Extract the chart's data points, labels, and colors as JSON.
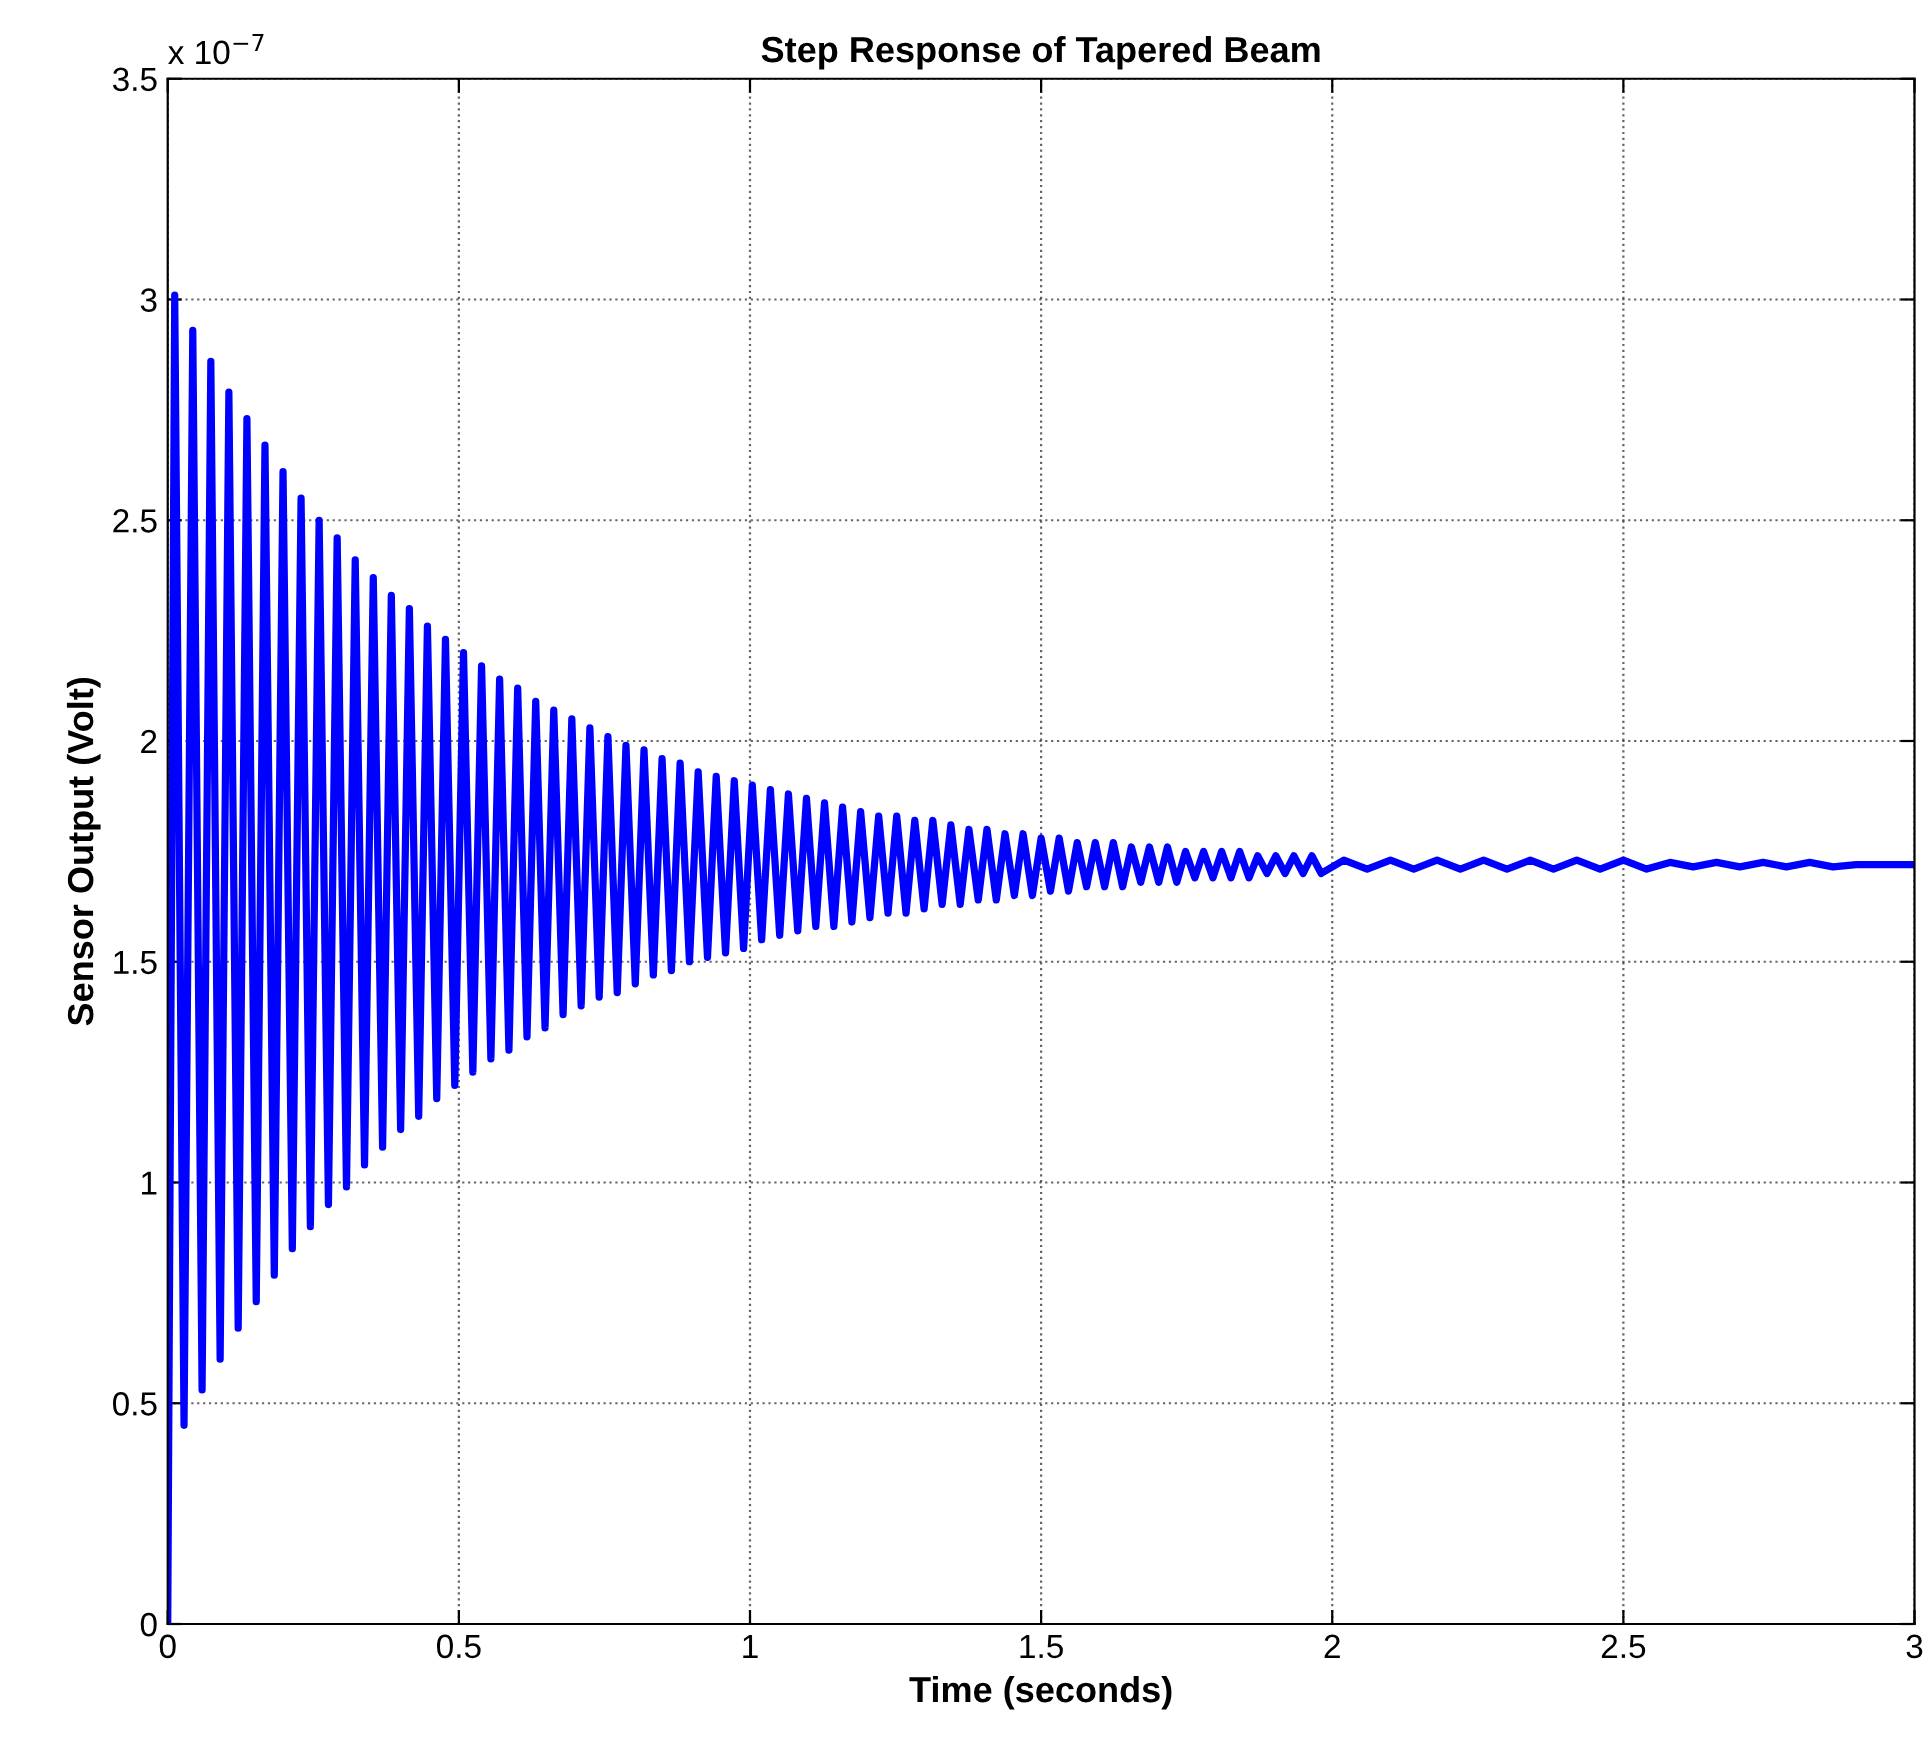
{
  "chart_data": {
    "type": "line",
    "title": "Step Response of Tapered Beam",
    "xlabel": "Time (seconds)",
    "ylabel": "Sensor Output (Volt)",
    "annotations": [
      "x 10$^{−7}$"
    ],
    "xlim": [
      0,
      3
    ],
    "ylim": [
      0,
      3.5
    ],
    "xticks": [
      0,
      0.5,
      1,
      1.5,
      2,
      2.5,
      3
    ],
    "yticks": [
      0,
      0.5,
      1,
      1.5,
      2,
      2.5,
      3,
      3.5
    ],
    "grid": true,
    "legend": false,
    "line_style": "solid",
    "marker": "none",
    "series": [
      {
        "color": "#0000ff",
        "x": [
          0,
          0.012,
          0.028,
          0.043,
          0.059,
          0.074,
          0.09,
          0.105,
          0.121,
          0.136,
          0.152,
          0.167,
          0.183,
          0.198,
          0.214,
          0.229,
          0.245,
          0.26,
          0.276,
          0.291,
          0.307,
          0.322,
          0.338,
          0.353,
          0.369,
          0.384,
          0.4,
          0.415,
          0.431,
          0.446,
          0.462,
          0.477,
          0.493,
          0.508,
          0.524,
          0.539,
          0.555,
          0.57,
          0.586,
          0.601,
          0.617,
          0.632,
          0.648,
          0.663,
          0.679,
          0.694,
          0.71,
          0.725,
          0.741,
          0.756,
          0.772,
          0.787,
          0.803,
          0.818,
          0.834,
          0.849,
          0.865,
          0.88,
          0.896,
          0.911,
          0.927,
          0.942,
          0.958,
          0.973,
          0.989,
          1.004,
          1.02,
          1.035,
          1.051,
          1.066,
          1.082,
          1.097,
          1.113,
          1.128,
          1.144,
          1.159,
          1.175,
          1.19,
          1.206,
          1.221,
          1.237,
          1.252,
          1.268,
          1.283,
          1.299,
          1.314,
          1.33,
          1.345,
          1.361,
          1.376,
          1.392,
          1.407,
          1.423,
          1.438,
          1.454,
          1.469,
          1.485,
          1.5,
          1.516,
          1.531,
          1.547,
          1.562,
          1.578,
          1.593,
          1.609,
          1.624,
          1.64,
          1.655,
          1.671,
          1.686,
          1.702,
          1.717,
          1.733,
          1.748,
          1.764,
          1.779,
          1.795,
          1.81,
          1.826,
          1.841,
          1.857,
          1.872,
          1.888,
          1.903,
          1.919,
          1.934,
          1.95,
          1.965,
          1.981,
          2.02,
          2.06,
          2.1,
          2.14,
          2.18,
          2.22,
          2.26,
          2.3,
          2.34,
          2.38,
          2.42,
          2.46,
          2.5,
          2.54,
          2.58,
          2.62,
          2.66,
          2.7,
          2.74,
          2.78,
          2.82,
          2.86,
          2.9,
          3.0
        ],
        "values": [
          0,
          3.01,
          0.45,
          2.93,
          0.53,
          2.86,
          0.6,
          2.79,
          0.67,
          2.73,
          0.73,
          2.67,
          0.79,
          2.61,
          0.85,
          2.55,
          0.9,
          2.5,
          0.95,
          2.46,
          0.99,
          2.41,
          1.04,
          2.37,
          1.08,
          2.33,
          1.12,
          2.3,
          1.15,
          2.26,
          1.19,
          2.23,
          1.22,
          2.2,
          1.25,
          2.17,
          1.28,
          2.14,
          1.3,
          2.12,
          1.33,
          2.09,
          1.35,
          2.07,
          1.38,
          2.05,
          1.4,
          2.03,
          1.42,
          2.01,
          1.43,
          1.99,
          1.45,
          1.98,
          1.47,
          1.96,
          1.48,
          1.95,
          1.5,
          1.93,
          1.51,
          1.92,
          1.52,
          1.91,
          1.53,
          1.9,
          1.55,
          1.89,
          1.56,
          1.88,
          1.57,
          1.87,
          1.58,
          1.86,
          1.58,
          1.85,
          1.59,
          1.84,
          1.6,
          1.83,
          1.61,
          1.83,
          1.61,
          1.82,
          1.62,
          1.82,
          1.63,
          1.81,
          1.63,
          1.8,
          1.64,
          1.8,
          1.64,
          1.79,
          1.65,
          1.79,
          1.65,
          1.78,
          1.66,
          1.78,
          1.66,
          1.77,
          1.67,
          1.77,
          1.67,
          1.77,
          1.67,
          1.76,
          1.68,
          1.76,
          1.68,
          1.76,
          1.68,
          1.75,
          1.69,
          1.75,
          1.69,
          1.75,
          1.69,
          1.75,
          1.69,
          1.74,
          1.7,
          1.74,
          1.7,
          1.74,
          1.7,
          1.74,
          1.7,
          1.73,
          1.71,
          1.73,
          1.71,
          1.73,
          1.71,
          1.73,
          1.71,
          1.73,
          1.71,
          1.73,
          1.71,
          1.73,
          1.71,
          1.725,
          1.715,
          1.725,
          1.715,
          1.725,
          1.715,
          1.725,
          1.715,
          1.72,
          1.72
        ]
      }
    ]
  }
}
